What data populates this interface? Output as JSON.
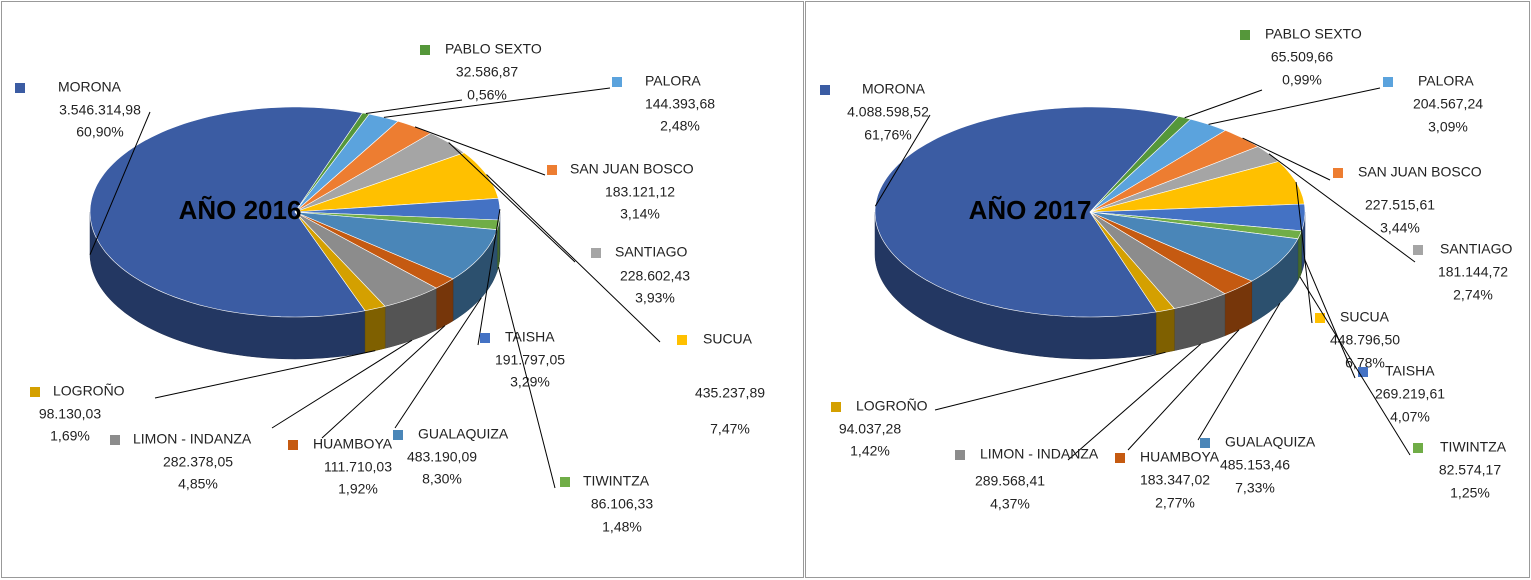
{
  "chart_data": [
    {
      "type": "pie3d",
      "title": "AÑO 2016",
      "categories": [
        "MORONA",
        "PABLO SEXTO",
        "PALORA",
        "SAN JUAN BOSCO",
        "SANTIAGO",
        "SUCUA",
        "TAISHA",
        "TIWINTZA",
        "GUALAQUIZA",
        "HUAMBOYA",
        "LIMON - INDANZA",
        "LOGROÑO"
      ],
      "values": [
        3546314.98,
        32586.87,
        144393.68,
        183121.12,
        228602.43,
        435237.89,
        191797.05,
        86106.33,
        483190.09,
        111710.03,
        282378.05,
        98130.03
      ],
      "value_labels": [
        "3.546.314,98",
        "32.586,87",
        "144.393,68",
        "183.121,12",
        "228.602,43",
        "435.237,89",
        "191.797,05",
        "86.106,33",
        "483.190,09",
        "111.710,03",
        "282.378,05",
        "98.130,03"
      ],
      "percentages": [
        60.9,
        0.56,
        2.48,
        3.14,
        3.93,
        7.47,
        3.29,
        1.48,
        8.3,
        1.92,
        4.85,
        1.69
      ],
      "percentage_labels": [
        "60,90%",
        "0,56%",
        "2,48%",
        "3,14%",
        "3,93%",
        "7,47%",
        "3,29%",
        "1,48%",
        "8,30%",
        "1,92%",
        "4,85%",
        "1,69%"
      ],
      "colors": [
        "#3b5ca3",
        "#55973a",
        "#5ba3dd",
        "#ed7d31",
        "#a5a5a5",
        "#ffc000",
        "#4472c4",
        "#70ad47",
        "#4a86b8",
        "#c55a11",
        "#8c8c8c",
        "#d4a000"
      ]
    },
    {
      "type": "pie3d",
      "title": "AÑO 2017",
      "categories": [
        "MORONA",
        "PABLO SEXTO",
        "PALORA",
        "SAN JUAN BOSCO",
        "SANTIAGO",
        "SUCUA",
        "TAISHA",
        "TIWINTZA",
        "GUALAQUIZA",
        "HUAMBOYA",
        "LIMON - INDANZA",
        "LOGROÑO"
      ],
      "values": [
        4088598.52,
        65509.66,
        204567.24,
        227515.61,
        181144.72,
        448796.5,
        269219.61,
        82574.17,
        485153.46,
        183347.02,
        289568.41,
        94037.28
      ],
      "value_labels": [
        "4.088.598,52",
        "65.509,66",
        "204.567,24",
        "227.515,61",
        "181.144,72",
        "448.796,50",
        "269.219,61",
        "82.574,17",
        "485.153,46",
        "183.347,02",
        "289.568,41",
        "94.037,28"
      ],
      "percentages": [
        61.76,
        0.99,
        3.09,
        3.44,
        2.74,
        6.78,
        4.07,
        1.25,
        7.33,
        2.77,
        4.37,
        1.42
      ],
      "percentage_labels": [
        "61,76%",
        "0,99%",
        "3,09%",
        "3,44%",
        "2,74%",
        "6,78%",
        "4,07%",
        "1,25%",
        "7,33%",
        "2,77%",
        "4,37%",
        "1,42%"
      ],
      "colors": [
        "#3b5ca3",
        "#55973a",
        "#5ba3dd",
        "#ed7d31",
        "#a5a5a5",
        "#ffc000",
        "#4472c4",
        "#70ad47",
        "#4a86b8",
        "#c55a11",
        "#8c8c8c",
        "#d4a000"
      ]
    }
  ]
}
